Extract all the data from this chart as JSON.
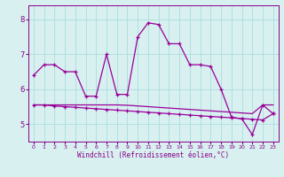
{
  "xlabel": "Windchill (Refroidissement éolien,°C)",
  "background_color": "#d8f0f0",
  "line_color": "#990099",
  "grid_color": "#aadddd",
  "xlim": [
    -0.5,
    23.5
  ],
  "ylim": [
    4.5,
    8.4
  ],
  "yticks": [
    5,
    6,
    7,
    8
  ],
  "xticks": [
    0,
    1,
    2,
    3,
    4,
    5,
    6,
    7,
    8,
    9,
    10,
    11,
    12,
    13,
    14,
    15,
    16,
    17,
    18,
    19,
    20,
    21,
    22,
    23
  ],
  "x_hours": [
    0,
    1,
    2,
    3,
    4,
    5,
    6,
    7,
    8,
    9,
    10,
    11,
    12,
    13,
    14,
    15,
    16,
    17,
    18,
    19,
    20,
    21,
    22,
    23
  ],
  "line1_y": [
    6.4,
    6.7,
    6.7,
    6.5,
    6.5,
    5.8,
    5.8,
    7.0,
    5.85,
    5.85,
    7.5,
    7.9,
    7.85,
    7.3,
    7.3,
    6.7,
    6.7,
    6.65,
    6.0,
    5.2,
    5.15,
    4.7,
    5.55,
    5.3
  ],
  "line2_y": [
    5.55,
    5.55,
    5.52,
    5.5,
    5.48,
    5.46,
    5.44,
    5.42,
    5.4,
    5.38,
    5.36,
    5.34,
    5.32,
    5.3,
    5.28,
    5.26,
    5.24,
    5.22,
    5.2,
    5.18,
    5.16,
    5.14,
    5.12,
    5.3
  ],
  "line3_y": [
    5.55,
    5.55,
    5.55,
    5.55,
    5.55,
    5.55,
    5.55,
    5.55,
    5.55,
    5.54,
    5.52,
    5.5,
    5.48,
    5.46,
    5.44,
    5.42,
    5.4,
    5.38,
    5.36,
    5.34,
    5.32,
    5.3,
    5.55,
    5.55
  ]
}
